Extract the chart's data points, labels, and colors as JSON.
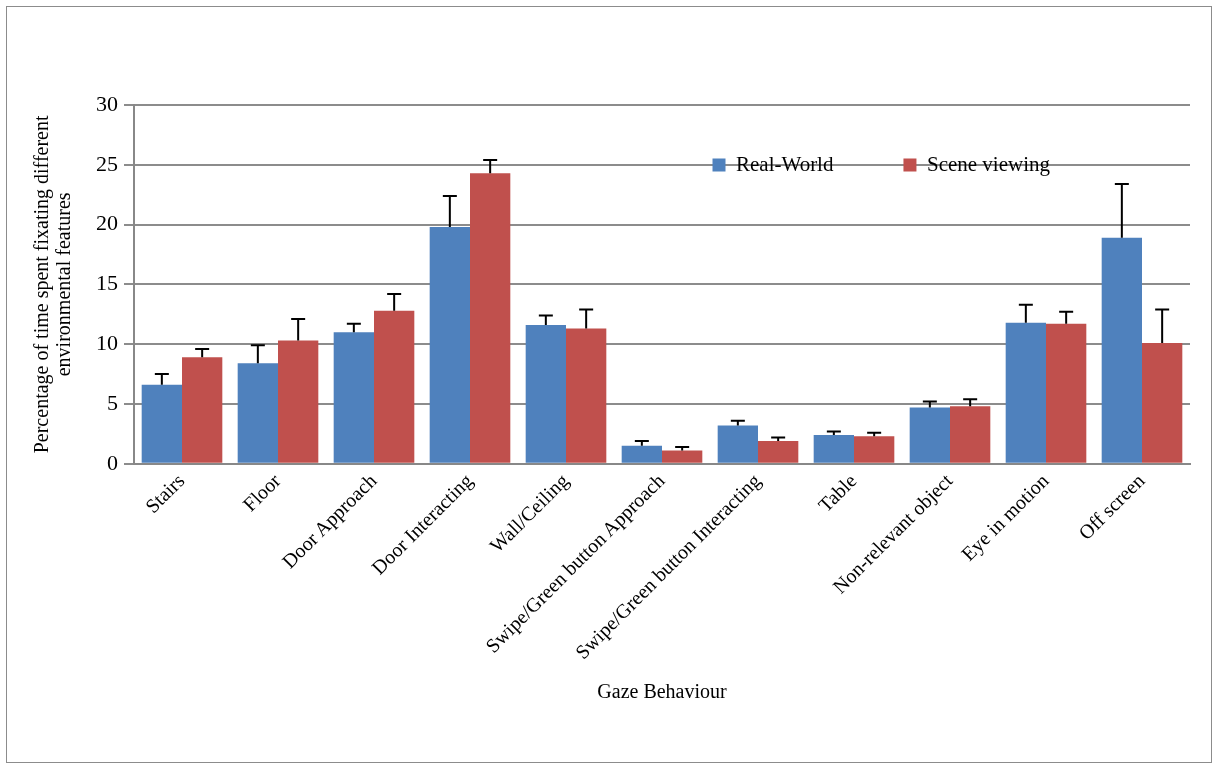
{
  "chart_data": {
    "type": "bar",
    "xlabel": "Gaze Behaviour",
    "ylabel": "Percentage of time spent fixating different environmental features",
    "categories": [
      "Stairs",
      "Floor",
      "Door Approach",
      "Door Interacting",
      "Wall/Ceiling",
      "Swipe/Green button Approach",
      "Swipe/Green button Interacting",
      "Table",
      "Non-relevant object",
      "Eye in motion",
      "Off screen"
    ],
    "series": [
      {
        "name": "Real-World",
        "color": "#4f81bd",
        "values": [
          6.6,
          8.4,
          11.0,
          19.8,
          11.6,
          1.5,
          3.2,
          2.4,
          4.7,
          11.8,
          18.9
        ],
        "errors": [
          [
            6.6,
            7.5
          ],
          [
            8.4,
            9.9
          ],
          [
            11.0,
            11.7
          ],
          [
            19.8,
            22.4
          ],
          [
            11.6,
            12.4
          ],
          [
            1.5,
            1.9
          ],
          [
            3.2,
            3.6
          ],
          [
            2.4,
            2.7
          ],
          [
            4.7,
            5.2
          ],
          [
            11.8,
            13.3
          ],
          [
            18.9,
            23.4
          ]
        ]
      },
      {
        "name": "Scene viewing",
        "color": "#c0504d",
        "values": [
          8.9,
          10.3,
          12.8,
          24.3,
          11.3,
          1.1,
          1.9,
          2.3,
          4.8,
          11.7,
          10.1
        ],
        "errors": [
          [
            8.9,
            9.6
          ],
          [
            10.3,
            12.1
          ],
          [
            12.8,
            14.2
          ],
          [
            24.3,
            25.4
          ],
          [
            11.3,
            12.9
          ],
          [
            1.1,
            1.4
          ],
          [
            1.9,
            2.2
          ],
          [
            2.3,
            2.6
          ],
          [
            4.8,
            5.4
          ],
          [
            11.7,
            12.7
          ],
          [
            10.1,
            12.9
          ]
        ]
      }
    ],
    "ylim": [
      0,
      30
    ],
    "yticks": [
      0,
      5,
      10,
      15,
      20,
      25,
      30
    ],
    "grid": "y",
    "legend": "top right"
  }
}
